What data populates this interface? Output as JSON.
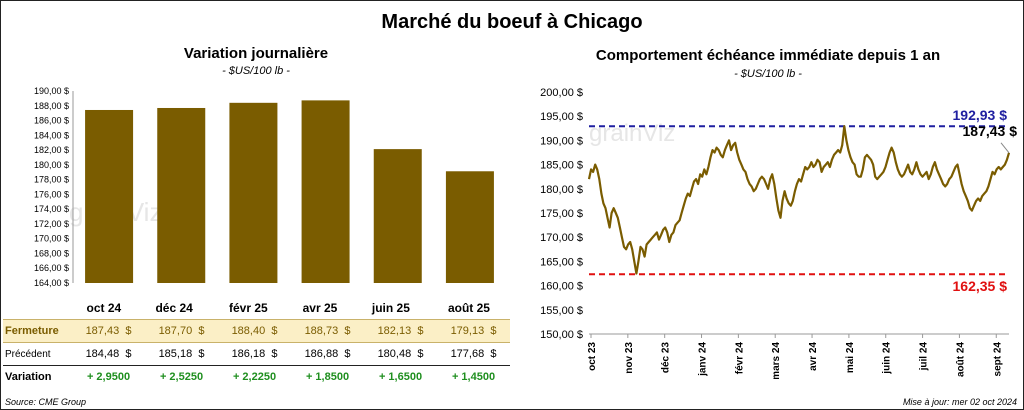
{
  "title": "Marché du boeuf à Chicago",
  "left_chart": {
    "title": "Variation journalière",
    "subtitle": "- $US/100 lb -",
    "watermark": "grainViz",
    "chart_data": {
      "type": "bar",
      "categories": [
        "oct 24",
        "déc 24",
        "févr 25",
        "avr 25",
        "juin 25",
        "août 25"
      ],
      "values": [
        187.43,
        187.7,
        188.4,
        188.73,
        182.13,
        179.13
      ],
      "ylim": [
        164,
        190
      ],
      "yticks": [
        "164,00 $",
        "166,00 $",
        "168,00 $",
        "170,00 $",
        "172,00 $",
        "174,00 $",
        "176,00 $",
        "178,00 $",
        "180,00 $",
        "182,00 $",
        "184,00 $",
        "186,00 $",
        "188,00 $",
        "190,00 $"
      ],
      "bar_color": "#7a5c00"
    }
  },
  "table": {
    "rows": [
      {
        "label": "Fermeture",
        "values": [
          "187,43",
          "187,70",
          "188,40",
          "188,73",
          "182,13",
          "179,13"
        ],
        "unit": "$"
      },
      {
        "label": "Précédent",
        "values": [
          "184,48",
          "185,18",
          "186,18",
          "186,88",
          "180,48",
          "177,68"
        ],
        "unit": "$"
      },
      {
        "label": "Variation",
        "values": [
          "+ 2,9500",
          "+ 2,5250",
          "+ 2,2250",
          "+ 1,8500",
          "+ 1,6500",
          "+ 1,4500"
        ],
        "unit": ""
      }
    ],
    "colors": {
      "close_bg": "#fbefc6",
      "close_text": "#7a5c00",
      "change_text": "#1f8f1f"
    }
  },
  "right_chart": {
    "title": "Comportement  échéance immédiate depuis 1 an",
    "subtitle": "- $US/100 lb -",
    "watermark": "grainViz",
    "chart_data": {
      "type": "line",
      "ylim": [
        150,
        200
      ],
      "yticks": [
        "150,00 $",
        "155,00 $",
        "160,00 $",
        "165,00 $",
        "170,00 $",
        "175,00 $",
        "180,00 $",
        "185,00 $",
        "190,00 $",
        "195,00 $",
        "200,00 $"
      ],
      "xticks": [
        "oct 23",
        "nov 23",
        "déc 23",
        "janv 24",
        "févr 24",
        "mars 24",
        "avr 24",
        "mai 24",
        "juin 24",
        "juil 24",
        "août 24",
        "sept 24"
      ],
      "series": [
        {
          "color": "#7a5c00",
          "values": [
            182,
            184,
            183.5,
            185,
            184,
            182,
            179,
            177,
            176,
            174,
            172,
            175,
            176,
            175,
            174,
            172,
            170,
            168,
            167.5,
            168.5,
            169,
            167.5,
            165,
            162.5,
            165,
            168,
            167.5,
            166,
            168.5,
            169,
            169.5,
            170,
            170.5,
            171,
            169.5,
            170.5,
            171.5,
            172,
            171,
            169,
            170.5,
            171,
            172.5,
            173,
            173.5,
            175,
            176.5,
            178,
            179,
            178.5,
            180,
            181.5,
            182,
            181,
            183,
            182.5,
            184,
            183,
            184.5,
            186.5,
            188,
            187.5,
            188.5,
            188,
            187,
            186.5,
            188,
            189,
            190,
            188,
            189,
            189.5,
            187.5,
            186,
            185,
            184,
            183.5,
            182,
            181,
            180.5,
            179.5,
            180,
            181,
            182,
            182.5,
            182,
            181,
            180,
            182,
            183,
            181,
            178,
            175.5,
            174,
            177.5,
            179.5,
            178,
            177,
            176.5,
            177.5,
            179.5,
            181,
            182,
            181.5,
            183,
            184.5,
            184,
            184.5,
            185.5,
            184.5,
            185,
            186,
            185.5,
            183.5,
            184.5,
            185,
            185.5,
            184.5,
            186,
            187,
            187.5,
            188,
            187.5,
            189,
            192.93,
            190,
            188,
            186.5,
            185.5,
            185,
            183,
            182.5,
            182.5,
            184,
            186.5,
            187,
            186.5,
            186,
            185,
            182.5,
            182,
            182.5,
            183,
            183.5,
            184.5,
            186,
            187.5,
            188.5,
            187.5,
            185.5,
            184,
            183,
            182.5,
            183,
            184,
            185,
            183.5,
            183,
            184,
            185.5,
            184,
            183,
            182.5,
            183,
            183.5,
            182,
            183,
            184.5,
            185.5,
            184,
            183,
            182,
            181,
            180.5,
            181,
            182,
            182.5,
            183.5,
            184.5,
            185,
            183,
            181,
            179.5,
            178.5,
            177.5,
            176,
            175.5,
            176.5,
            177.5,
            178,
            177.5,
            178.5,
            179,
            179.5,
            180.5,
            182,
            183.5,
            183,
            184,
            184.5,
            184,
            184.5,
            185,
            186,
            187.43
          ]
        }
      ],
      "high": {
        "value": 192.93,
        "label": "192,93 $",
        "color": "#1f1fa0"
      },
      "low": {
        "value": 162.35,
        "label": "162,35 $",
        "color": "#e01010"
      },
      "last": {
        "value": 187.43,
        "label": "187,43 $"
      }
    }
  },
  "footer": {
    "source": "Source: CME Group",
    "updated": "Mise à jour: mer 02 oct 2024"
  }
}
